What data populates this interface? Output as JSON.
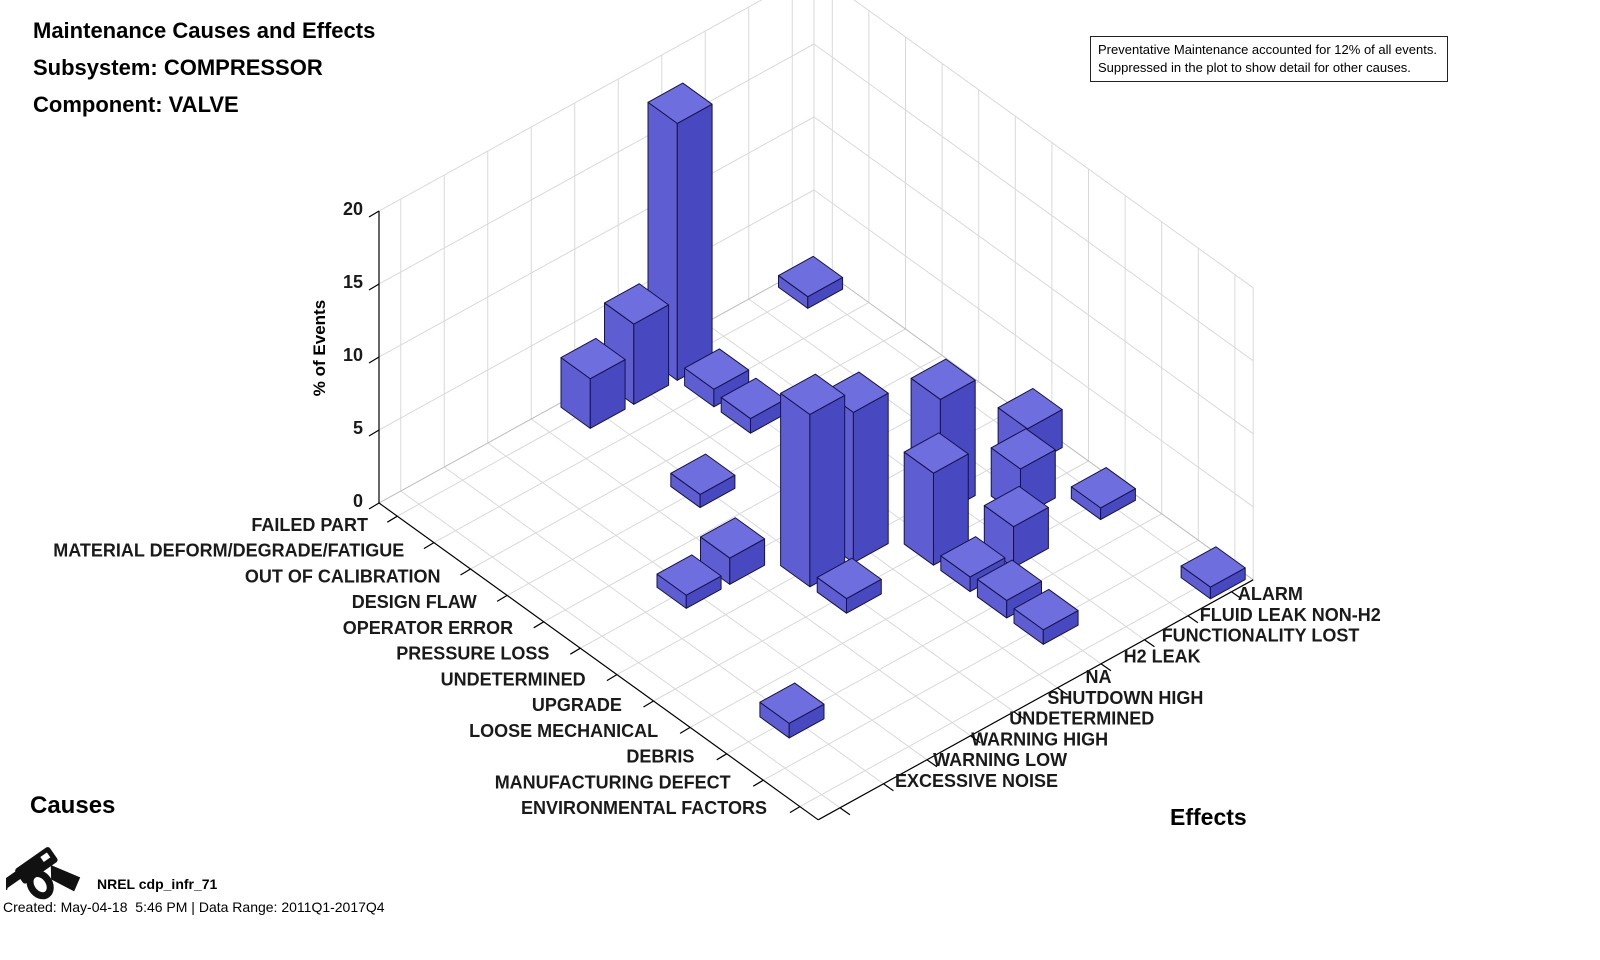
{
  "title": {
    "line1": "Maintenance Causes and Effects",
    "line2": "Subsystem: COMPRESSOR",
    "line3": "Component: VALVE"
  },
  "annotation": {
    "line1": "Preventative Maintenance accounted for 12% of all events.",
    "line2": "Suppressed in the plot to show detail for other causes."
  },
  "axis_titles": {
    "causes": "Causes",
    "effects": "Effects"
  },
  "footer": {
    "logo": "nrel-fuel-nozzle-logo",
    "label": "NREL cdp_infr_71",
    "created": "Created: May-04-18  5:46 PM | Data Range: 2011Q1-2017Q4"
  },
  "colors": {
    "bar_top": "#6E6EDE",
    "bar_left": "#5E5ED2",
    "bar_right": "#4848C0",
    "bar_edge": "#14144A",
    "grid": "#D9D9D9",
    "axis": "#000000",
    "text": "#1A1A1A"
  },
  "chart_data": {
    "type": "bar",
    "subtype": "bar3d",
    "title": "Maintenance Causes and Effects — Subsystem: COMPRESSOR — Component: VALVE",
    "xlabel": "Effects",
    "ylabel": "Causes",
    "zlabel": "% of Events",
    "z_ticks": [
      0,
      5,
      10,
      15,
      20
    ],
    "zlim": [
      0,
      20
    ],
    "grid": true,
    "note": "Preventative Maintenance accounted for 12% of all events. Suppressed in the plot to show detail for other causes.",
    "causes": [
      "FAILED PART",
      "MATERIAL DEFORM/DEGRADE/FATIGUE",
      "OUT OF CALIBRATION",
      "DESIGN FLAW",
      "OPERATOR ERROR",
      "PRESSURE LOSS",
      "UNDETERMINED",
      "UPGRADE",
      "LOOSE MECHANICAL",
      "DEBRIS",
      "MANUFACTURING DEFECT",
      "ENVIRONMENTAL FACTORS"
    ],
    "effects": [
      "EXCESSIVE NOISE",
      "WARNING LOW",
      "WARNING HIGH",
      "UNDETERMINED",
      "SHUTDOWN HIGH",
      "NA",
      "H2 LEAK",
      "FUNCTIONALITY LOST",
      "FLUID LEAK NON-H2",
      "ALARM"
    ],
    "bars": [
      {
        "cause": "FAILED PART",
        "effect": "SHUTDOWN HIGH",
        "value": 3.4
      },
      {
        "cause": "FAILED PART",
        "effect": "NA",
        "value": 5.5
      },
      {
        "cause": "FAILED PART",
        "effect": "H2 LEAK",
        "value": 17.6
      },
      {
        "cause": "FAILED PART",
        "effect": "ALARM",
        "value": 0.8
      },
      {
        "cause": "MATERIAL DEFORM/DEGRADE/FATIGUE",
        "effect": "H2 LEAK",
        "value": 1.2
      },
      {
        "cause": "OUT OF CALIBRATION",
        "effect": "H2 LEAK",
        "value": 1.0
      },
      {
        "cause": "DESIGN FLAW",
        "effect": "SHUTDOWN HIGH",
        "value": 0.9
      },
      {
        "cause": "PRESSURE LOSS",
        "effect": "WARNING HIGH",
        "value": 0.9
      },
      {
        "cause": "PRESSURE LOSS",
        "effect": "UNDETERMINED",
        "value": 1.8
      },
      {
        "cause": "UNDETERMINED",
        "effect": "SHUTDOWN HIGH",
        "value": 11.8
      },
      {
        "cause": "UNDETERMINED",
        "effect": "NA",
        "value": 10.3
      },
      {
        "cause": "UNDETERMINED",
        "effect": "FUNCTIONALITY LOST",
        "value": 7.9
      },
      {
        "cause": "UNDETERMINED",
        "effect": "ALARM",
        "value": 2.6
      },
      {
        "cause": "UPGRADE",
        "effect": "SHUTDOWN HIGH",
        "value": 1.0
      },
      {
        "cause": "UPGRADE",
        "effect": "H2 LEAK",
        "value": 6.3
      },
      {
        "cause": "UPGRADE",
        "effect": "FLUID LEAK NON-H2",
        "value": 3.3
      },
      {
        "cause": "LOOSE MECHANICAL",
        "effect": "H2 LEAK",
        "value": 1.0
      },
      {
        "cause": "LOOSE MECHANICAL",
        "effect": "FUNCTIONALITY LOST",
        "value": 2.8
      },
      {
        "cause": "LOOSE MECHANICAL",
        "effect": "ALARM",
        "value": 0.8
      },
      {
        "cause": "DEBRIS",
        "effect": "WARNING LOW",
        "value": 1.0
      },
      {
        "cause": "DEBRIS",
        "effect": "H2 LEAK",
        "value": 1.2
      },
      {
        "cause": "MANUFACTURING DEFECT",
        "effect": "H2 LEAK",
        "value": 1.0
      },
      {
        "cause": "ENVIRONMENTAL FACTORS",
        "effect": "ALARM",
        "value": 0.8
      }
    ]
  }
}
